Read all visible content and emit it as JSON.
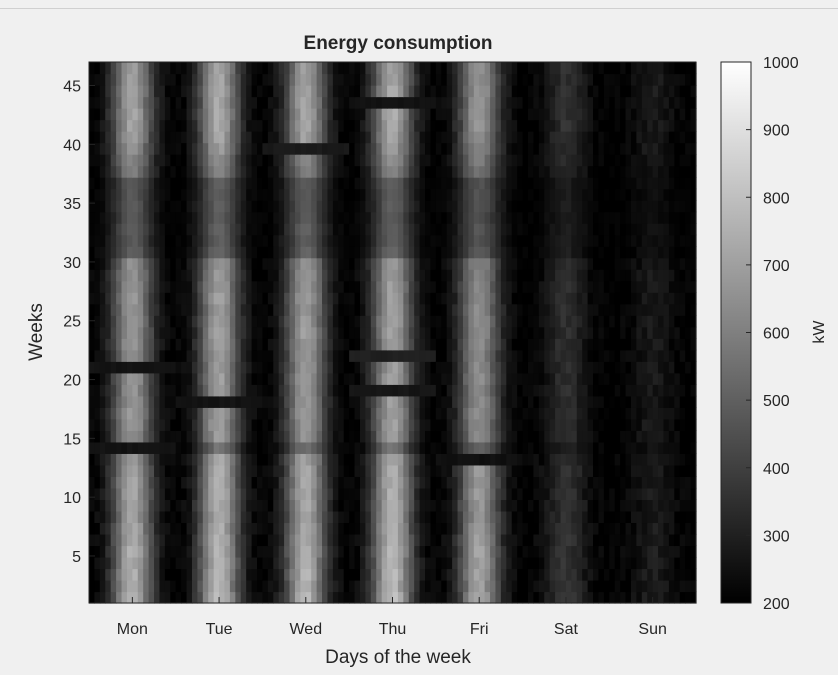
{
  "chart_data": {
    "type": "heatmap",
    "title": "Energy consumption",
    "xlabel": "Days of the week",
    "ylabel": "Weeks",
    "categories": [
      "Mon",
      "Tue",
      "Wed",
      "Thu",
      "Fri",
      "Sat",
      "Sun"
    ],
    "y_ticks": [
      5,
      10,
      15,
      20,
      25,
      30,
      35,
      40,
      45
    ],
    "ylim": [
      1,
      47
    ],
    "colorbar": {
      "label": "kW",
      "ticks": [
        200,
        300,
        400,
        500,
        600,
        700,
        800,
        900,
        1000
      ],
      "range": [
        200,
        1000
      ],
      "colormap": "gray"
    },
    "weeks": 47,
    "day_profile": {
      "Mon": 760,
      "Tue": 790,
      "Wed": 770,
      "Thu": 790,
      "Fri": 720,
      "Sat": 370,
      "Sun": 290
    },
    "week_factor": [
      1.0,
      0.95,
      0.98,
      0.96,
      0.97,
      0.95,
      0.93,
      0.9,
      0.92,
      0.94,
      0.91,
      0.93,
      0.88,
      0.62,
      0.82,
      0.85,
      0.86,
      0.84,
      0.83,
      0.86,
      0.84,
      0.82,
      0.85,
      0.87,
      0.86,
      0.84,
      0.85,
      0.84,
      0.82,
      0.8,
      0.55,
      0.5,
      0.52,
      0.48,
      0.5,
      0.49,
      0.5,
      0.7,
      0.75,
      0.82,
      0.88,
      0.9,
      0.92,
      0.9,
      0.91,
      0.88,
      0.86
    ],
    "dips": [
      {
        "day": "Mon",
        "week": 14,
        "value": 260
      },
      {
        "day": "Mon",
        "week": 21,
        "value": 260
      },
      {
        "day": "Tue",
        "week": 18,
        "value": 260
      },
      {
        "day": "Wed",
        "week": 40,
        "value": 280
      },
      {
        "day": "Thu",
        "week": 19,
        "value": 270
      },
      {
        "day": "Thu",
        "week": 22,
        "value": 300
      },
      {
        "day": "Thu",
        "week": 44,
        "value": 260
      },
      {
        "day": "Fri",
        "week": 13,
        "value": 250
      }
    ]
  }
}
